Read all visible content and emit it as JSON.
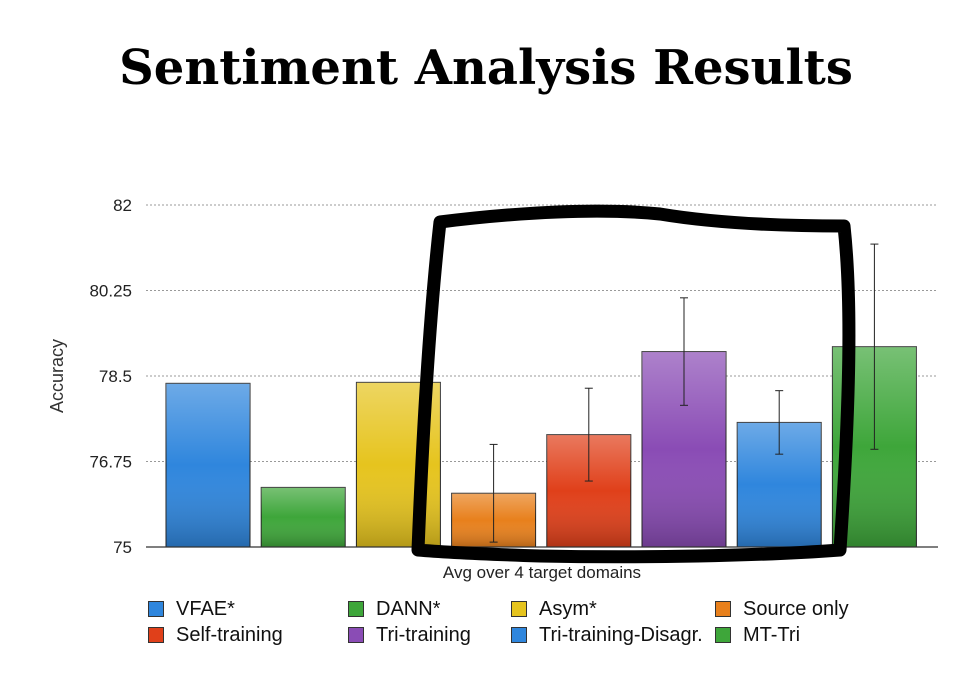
{
  "chart_data": {
    "type": "bar",
    "title": "Sentiment Analysis Results",
    "xlabel": "Avg over 4 target domains",
    "ylabel": "Accuracy",
    "ylim": [
      75,
      82
    ],
    "yticks": [
      "75",
      "76.75",
      "78.5",
      "80.25",
      "82"
    ],
    "categories": [
      "Avg over 4 target domains"
    ],
    "grid": true,
    "legend_placement": "bottom",
    "series": [
      {
        "name": "VFAE*",
        "values": [
          78.35
        ],
        "error": [
          0
        ],
        "color": "#2f86dd"
      },
      {
        "name": "DANN*",
        "values": [
          76.22
        ],
        "error": [
          0
        ],
        "color": "#3ea63a"
      },
      {
        "name": "Asym*",
        "values": [
          78.37
        ],
        "error": [
          0
        ],
        "color": "#e6c41e"
      },
      {
        "name": "Source only",
        "values": [
          76.1
        ],
        "error": [
          1.0
        ],
        "color": "#e8801c"
      },
      {
        "name": "Self-training",
        "values": [
          77.3
        ],
        "error": [
          0.95
        ],
        "color": "#e0401a"
      },
      {
        "name": "Tri-training",
        "values": [
          79.0
        ],
        "error": [
          1.1
        ],
        "color": "#8a4cb5"
      },
      {
        "name": "Tri-training-Disagr.",
        "values": [
          77.55
        ],
        "error": [
          0.65
        ],
        "color": "#2f86dd"
      },
      {
        "name": "MT-Tri",
        "values": [
          79.1
        ],
        "error": [
          2.1
        ],
        "color": "#3ea63a"
      }
    ]
  }
}
